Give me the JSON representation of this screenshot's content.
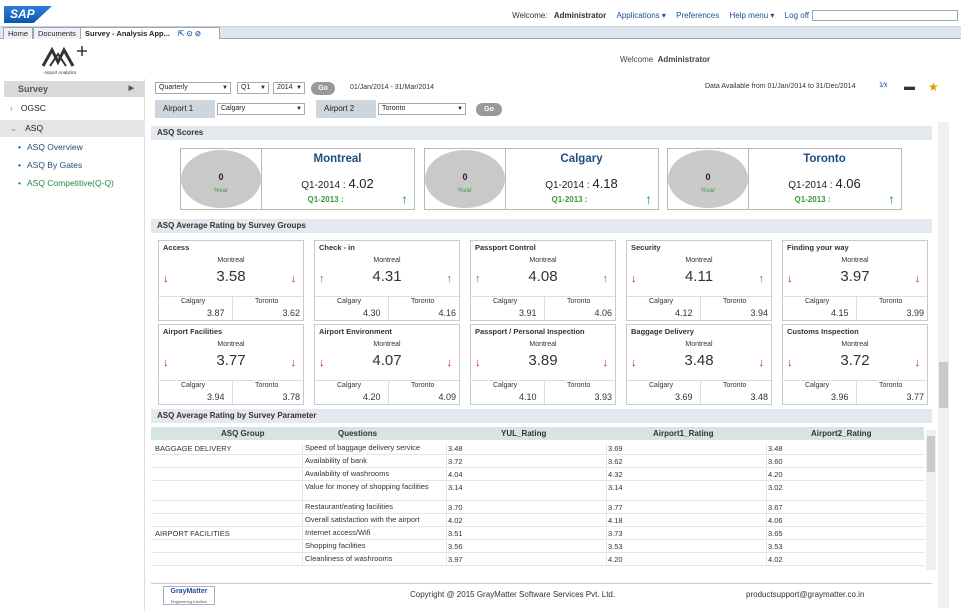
{
  "topbar": {
    "logo": "SAP",
    "welcome_prefix": "Welcome:",
    "user": "Administrator",
    "links": [
      "Applications ▾",
      "Preferences",
      "Help menu ▾",
      "Log off"
    ]
  },
  "tabs": [
    "Home",
    "Documents",
    "Survey - Analysis App..."
  ],
  "tab_icons": "⇱ ⊙ ⊘",
  "header": {
    "brand_sub": "Airport Analytics",
    "welcome_prefix": "Welcome",
    "user": "Administrator"
  },
  "sidebar": {
    "title": "Survey",
    "items": [
      {
        "label": "OGSC",
        "bullet": "›"
      },
      {
        "label": "ASQ",
        "bullet": "⌄"
      },
      {
        "label": "ASQ Overview",
        "bullet": "•"
      },
      {
        "label": "ASQ By Gates",
        "bullet": "•"
      },
      {
        "label": "ASQ Competitive(Q-Q)",
        "bullet": "•"
      }
    ]
  },
  "filters": {
    "period": "Quarterly",
    "quarter": "Q1",
    "year": "2014",
    "go": "Go",
    "range": "01/Jan/2014 - 31/Mar/2014",
    "available": "Data Available from 01/Jan/2014 to 31/Dec/2014",
    "airport1_label": "Airport 1",
    "airport1": "Calgary",
    "airport2_label": "Airport 2",
    "airport2": "Toronto"
  },
  "sections": {
    "scores": "ASQ Scores",
    "groups": "ASQ Average Rating by Survey Groups",
    "params": "ASQ Average Rating by Survey Parameter"
  },
  "scores": [
    {
      "city": "Montreal",
      "value": "0",
      "svar": "%var",
      "current_label": "Q1-2014 :",
      "current": "4.02",
      "prev_label": "Q1-2013 :",
      "arrow": "↑"
    },
    {
      "city": "Calgary",
      "value": "0",
      "svar": "%var",
      "current_label": "Q1-2014 :",
      "current": "4.18",
      "prev_label": "Q1-2013 :",
      "arrow": "↑"
    },
    {
      "city": "Toronto",
      "value": "0",
      "svar": "%var",
      "current_label": "Q1-2014 :",
      "current": "4.06",
      "prev_label": "Q1-2013 :",
      "arrow": "↑"
    }
  ],
  "labels": {
    "main": "Montreal",
    "a1": "Calgary",
    "a2": "Toronto"
  },
  "groups": [
    {
      "title": "Access",
      "value": "3.58",
      "a1": "3.87",
      "a2": "3.62",
      "left": "↓",
      "right": "↓"
    },
    {
      "title": "Check - in",
      "value": "4.31",
      "a1": "4.30",
      "a2": "4.16",
      "left": "↑",
      "right": "↑"
    },
    {
      "title": "Passport Control",
      "value": "4.08",
      "a1": "3.91",
      "a2": "4.06",
      "left": "↑",
      "right": "↑"
    },
    {
      "title": "Security",
      "value": "4.11",
      "a1": "4.12",
      "a2": "3.94",
      "left": "↓",
      "right": "↑"
    },
    {
      "title": "Finding your way",
      "value": "3.97",
      "a1": "4.15",
      "a2": "3.99",
      "left": "↓",
      "right": "↓"
    },
    {
      "title": "Airport Facilities",
      "value": "3.77",
      "a1": "3.94",
      "a2": "3.78",
      "left": "↓",
      "right": "↓"
    },
    {
      "title": "Airport Environment",
      "value": "4.07",
      "a1": "4.20",
      "a2": "4.09",
      "left": "↓",
      "right": "↓"
    },
    {
      "title": "Passport / Personal Inspection",
      "value": "3.89",
      "a1": "4.10",
      "a2": "3.93",
      "left": "↓",
      "right": "↓"
    },
    {
      "title": "Baggage Delivery",
      "value": "3.48",
      "a1": "3.69",
      "a2": "3.48",
      "left": "↓",
      "right": "↓"
    },
    {
      "title": "Customs Inspection",
      "value": "3.72",
      "a1": "3.96",
      "a2": "3.77",
      "left": "↓",
      "right": "↓"
    }
  ],
  "table": {
    "headers": [
      "ASQ Group",
      "Questions",
      "YUL_Rating",
      "Airport1_Rating",
      "Airport2_Rating"
    ],
    "rows": [
      {
        "group": "BAGGAGE DELIVERY",
        "q": "Speed of baggage delivery service",
        "r1": "3.48",
        "r2": "3.69",
        "r3": "3.48"
      },
      {
        "group": "",
        "q": "Availability of bank",
        "r1": "3.72",
        "r2": "3.62",
        "r3": "3.60"
      },
      {
        "group": "",
        "q": "Availability of washrooms",
        "r1": "4.04",
        "r2": "4.32",
        "r3": "4.20"
      },
      {
        "group": "",
        "q": "Value for money of shopping facilities",
        "r1": "3.14",
        "r2": "3.14",
        "r3": "3.02"
      },
      {
        "group": "",
        "q": "Restaurant/eating facilities",
        "r1": "3.70",
        "r2": "3.77",
        "r3": "3.67"
      },
      {
        "group": "",
        "q": "Overall satisfaction with the airport",
        "r1": "4.02",
        "r2": "4.18",
        "r3": "4.06"
      },
      {
        "group": "AIRPORT FACILITIES",
        "q": "Internet access/Wifi",
        "r1": "3.51",
        "r2": "3.73",
        "r3": "3.65"
      },
      {
        "group": "",
        "q": "Shopping facilities",
        "r1": "3.56",
        "r2": "3.53",
        "r3": "3.53"
      },
      {
        "group": "",
        "q": "Cleanliness of washrooms",
        "r1": "3.97",
        "r2": "4.20",
        "r3": "4.02"
      }
    ]
  },
  "footer": {
    "logo": "GrayMatter",
    "logo_sub": "Engineering Intuition",
    "copyright": "Copyright @ 2015 GrayMatter Software Services Pvt. Ltd.",
    "email": "productsupport@graymatter.co.in"
  }
}
